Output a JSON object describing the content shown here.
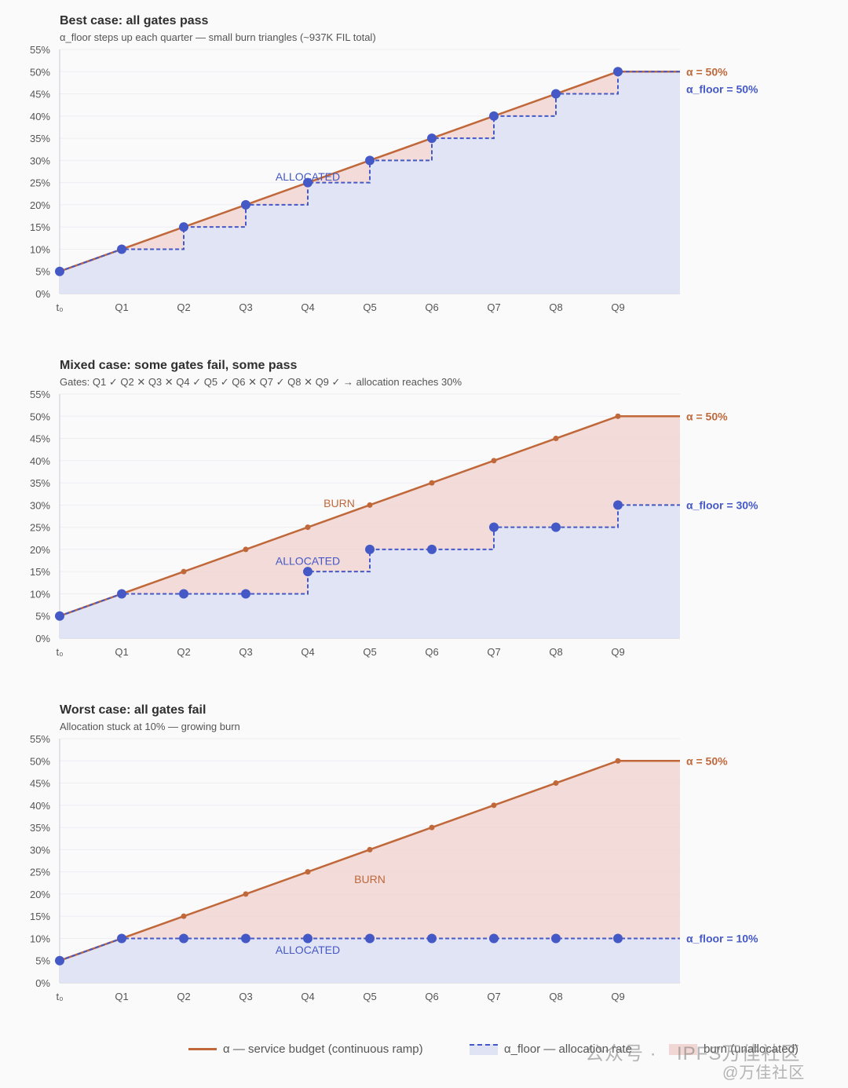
{
  "charts": {
    "best": {
      "title": "Best case: all gates pass",
      "subtitle": "α_floor steps up each quarter — small burn triangles (~937K FIL total)",
      "alpha_label": "α = 50%",
      "floor_label": "α_floor = 50%",
      "burn_label": "",
      "allocated_label": "ALLOCATED"
    },
    "mixed": {
      "title": "Mixed case: some gates fail, some pass",
      "subtitle": "Gates: Q1 ✓  Q2 ✕  Q3 ✕  Q4 ✓  Q5 ✓  Q6 ✕  Q7 ✓  Q8 ✕  Q9 ✓ → allocation reaches 30%",
      "alpha_label": "α = 50%",
      "floor_label": "α_floor = 30%",
      "burn_label": "BURN",
      "allocated_label": "ALLOCATED"
    },
    "worst": {
      "title": "Worst case: all gates fail",
      "subtitle": "Allocation stuck at 10% — growing burn",
      "alpha_label": "α = 50%",
      "floor_label": "α_floor = 10%",
      "burn_label": "BURN",
      "allocated_label": "ALLOCATED"
    }
  },
  "legend": {
    "alpha": "α — service budget (continuous ramp)",
    "floor": "α_floor — allocation rate",
    "burn": "burn (unallocated)"
  },
  "watermark": {
    "left": "公众号 ·",
    "right": "IPFS万佳社区",
    "handle": "@万佳社区"
  },
  "colors": {
    "alpha": "#c0683a",
    "floor": "#4559c6",
    "burn_fill": "#f1d7d4",
    "allocated_fill": "#dfe3f3"
  },
  "chart_data": [
    {
      "type": "line",
      "title": "Best case: all gates pass",
      "x": [
        "t₀",
        "Q1",
        "Q2",
        "Q3",
        "Q4",
        "Q5",
        "Q6",
        "Q7",
        "Q8",
        "Q9"
      ],
      "ylim": [
        0,
        55
      ],
      "yticks": [
        "0%",
        "5%",
        "10%",
        "15%",
        "20%",
        "25%",
        "30%",
        "35%",
        "40%",
        "45%",
        "50%",
        "55%"
      ],
      "series": [
        {
          "name": "α — service budget (continuous ramp)",
          "values": [
            5,
            10,
            15,
            20,
            25,
            30,
            35,
            40,
            45,
            50
          ]
        },
        {
          "name": "α_floor — allocation rate",
          "values": [
            5,
            10,
            15,
            20,
            25,
            30,
            35,
            40,
            45,
            50
          ]
        }
      ],
      "floor_markers": [
        0,
        1,
        2,
        3,
        4,
        5,
        6,
        7,
        8,
        9
      ],
      "alpha_markers": []
    },
    {
      "type": "line",
      "title": "Mixed case: some gates fail, some pass",
      "x": [
        "t₀",
        "Q1",
        "Q2",
        "Q3",
        "Q4",
        "Q5",
        "Q6",
        "Q7",
        "Q8",
        "Q9"
      ],
      "ylim": [
        0,
        55
      ],
      "yticks": [
        "0%",
        "5%",
        "10%",
        "15%",
        "20%",
        "25%",
        "30%",
        "35%",
        "40%",
        "45%",
        "50%",
        "55%"
      ],
      "series": [
        {
          "name": "α — service budget (continuous ramp)",
          "values": [
            5,
            10,
            15,
            20,
            25,
            30,
            35,
            40,
            45,
            50
          ]
        },
        {
          "name": "α_floor — allocation rate",
          "values": [
            5,
            10,
            10,
            10,
            15,
            20,
            20,
            25,
            25,
            30
          ]
        }
      ],
      "floor_markers": [
        0,
        1,
        2,
        3,
        4,
        5,
        6,
        7,
        8,
        9
      ],
      "alpha_markers": [
        2,
        3,
        4,
        5,
        6,
        7,
        8,
        9
      ]
    },
    {
      "type": "line",
      "title": "Worst case: all gates fail",
      "x": [
        "t₀",
        "Q1",
        "Q2",
        "Q3",
        "Q4",
        "Q5",
        "Q6",
        "Q7",
        "Q8",
        "Q9"
      ],
      "ylim": [
        0,
        55
      ],
      "yticks": [
        "0%",
        "5%",
        "10%",
        "15%",
        "20%",
        "25%",
        "30%",
        "35%",
        "40%",
        "45%",
        "50%",
        "55%"
      ],
      "series": [
        {
          "name": "α — service budget (continuous ramp)",
          "values": [
            5,
            10,
            15,
            20,
            25,
            30,
            35,
            40,
            45,
            50
          ]
        },
        {
          "name": "α_floor — allocation rate",
          "values": [
            5,
            10,
            10,
            10,
            10,
            10,
            10,
            10,
            10,
            10
          ]
        }
      ],
      "floor_markers": [
        0,
        1,
        2,
        3,
        4,
        5,
        6,
        7,
        8,
        9
      ],
      "alpha_markers": [
        2,
        3,
        4,
        5,
        6,
        7,
        8,
        9
      ]
    }
  ]
}
